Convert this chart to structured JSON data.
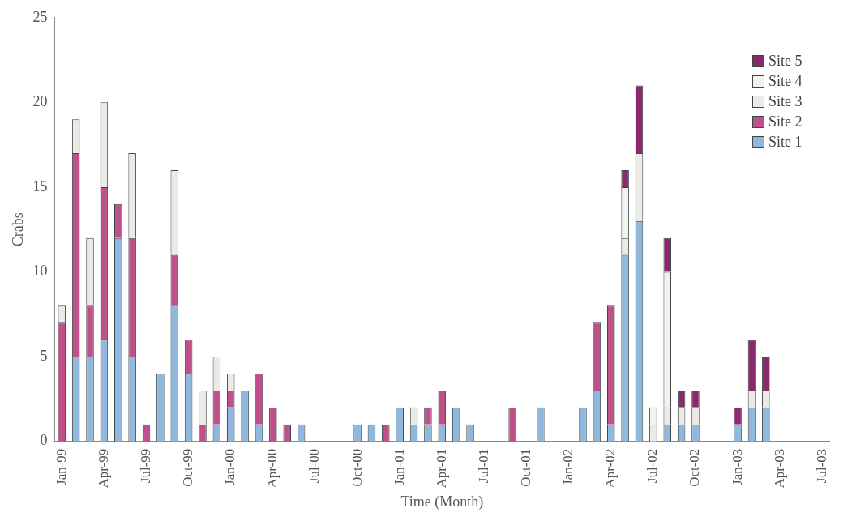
{
  "chart_data": {
    "type": "bar",
    "stacked": true,
    "xlabel": "Time (Month)",
    "ylabel": "Crabs",
    "ylim": [
      0,
      25
    ],
    "yticks": [
      0,
      5,
      10,
      15,
      20,
      25
    ],
    "grid": false,
    "legend": "top right",
    "categories": [
      "Jan-99",
      null,
      null,
      "Apr-99",
      null,
      null,
      "Jul-99",
      null,
      null,
      "Oct-99",
      null,
      null,
      "Jan-00",
      null,
      null,
      "Apr-00",
      null,
      null,
      "Jul-00",
      null,
      null,
      "Oct-00",
      null,
      null,
      "Jan-01",
      null,
      null,
      "Apr-01",
      null,
      null,
      "Jul-01",
      null,
      null,
      "Oct-01",
      null,
      null,
      "Jan-02",
      null,
      null,
      "Apr-02",
      null,
      null,
      "Jul-02",
      null,
      null,
      "Oct-02",
      null,
      null,
      "Jan-03",
      null,
      null,
      "Apr-03",
      null,
      null,
      "Jul-03"
    ],
    "series": [
      {
        "name": "Site 1",
        "color": "#8fb8dc",
        "values": [
          null,
          5,
          5,
          6,
          12,
          5,
          null,
          4,
          8,
          4,
          null,
          1,
          2,
          3,
          1,
          null,
          null,
          1,
          null,
          null,
          null,
          1,
          1,
          null,
          2,
          1,
          1,
          1,
          2,
          1,
          null,
          null,
          null,
          null,
          2,
          null,
          null,
          2,
          3,
          1,
          11,
          13,
          null,
          1,
          1,
          1,
          null,
          null,
          1,
          2,
          2,
          null,
          null,
          null,
          null
        ]
      },
      {
        "name": "Site 2",
        "color": "#c0508a",
        "values": [
          7,
          12,
          3,
          9,
          2,
          7,
          1,
          null,
          3,
          2,
          1,
          2,
          1,
          null,
          3,
          2,
          1,
          null,
          null,
          null,
          null,
          null,
          null,
          1,
          null,
          null,
          1,
          2,
          null,
          null,
          null,
          null,
          2,
          null,
          null,
          null,
          null,
          null,
          4,
          7,
          null,
          null,
          null,
          null,
          null,
          null,
          null,
          null,
          null,
          null,
          null,
          null,
          null,
          null,
          null
        ]
      },
      {
        "name": "Site 3",
        "color": "#ebebe6",
        "values": [
          1,
          2,
          4,
          5,
          null,
          5,
          null,
          null,
          5,
          null,
          2,
          2,
          1,
          null,
          null,
          null,
          null,
          null,
          null,
          null,
          null,
          null,
          null,
          null,
          null,
          1,
          null,
          null,
          null,
          null,
          null,
          null,
          null,
          null,
          null,
          null,
          null,
          null,
          null,
          null,
          1,
          4,
          1,
          1,
          1,
          1,
          null,
          null,
          null,
          1,
          1,
          null,
          null,
          null,
          null
        ]
      },
      {
        "name": "Site 4",
        "color": "#f2f2ee",
        "values": [
          null,
          null,
          null,
          null,
          null,
          null,
          null,
          null,
          null,
          null,
          null,
          null,
          null,
          null,
          null,
          null,
          null,
          null,
          null,
          null,
          null,
          null,
          null,
          null,
          null,
          null,
          null,
          null,
          null,
          null,
          null,
          null,
          null,
          null,
          null,
          null,
          null,
          null,
          null,
          null,
          3,
          null,
          1,
          8,
          null,
          null,
          null,
          null,
          null,
          null,
          null,
          null,
          null,
          null,
          null
        ]
      },
      {
        "name": "Site 5",
        "color": "#8b2a6b",
        "values": [
          null,
          null,
          null,
          null,
          null,
          null,
          null,
          null,
          null,
          null,
          null,
          null,
          null,
          null,
          null,
          null,
          null,
          null,
          null,
          null,
          null,
          null,
          null,
          null,
          null,
          null,
          null,
          null,
          null,
          null,
          null,
          null,
          null,
          null,
          null,
          null,
          null,
          null,
          null,
          null,
          1,
          4,
          null,
          2,
          1,
          1,
          null,
          null,
          1,
          3,
          2,
          null,
          null,
          null,
          null
        ]
      }
    ]
  }
}
